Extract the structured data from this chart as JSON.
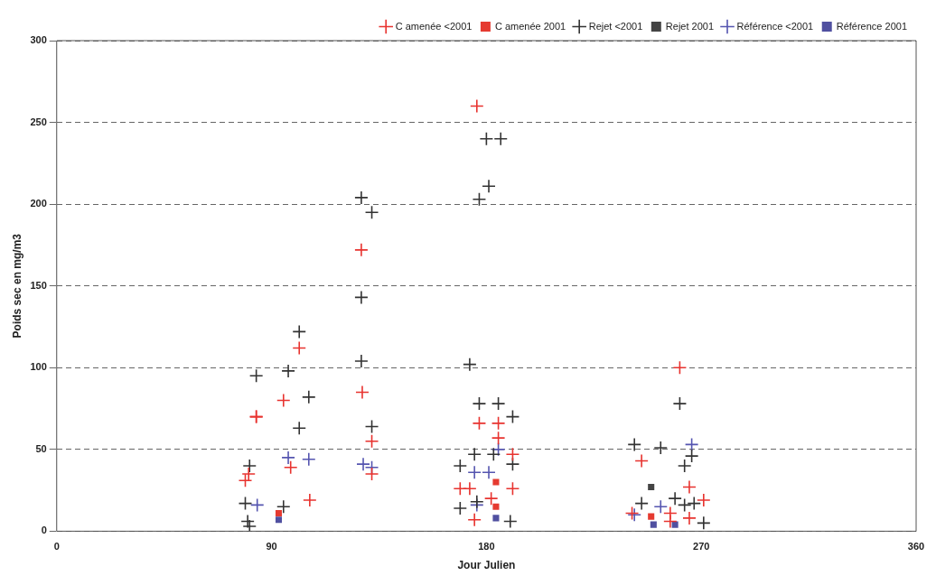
{
  "chart_data": {
    "type": "scatter",
    "xlabel": "Jour Julien",
    "ylabel": "Poids sec en mg/m3",
    "xlim": [
      0,
      360
    ],
    "xticks": [
      0,
      90,
      180,
      270,
      360
    ],
    "ylim": [
      0,
      300
    ],
    "yticks": [
      0,
      50,
      100,
      150,
      200,
      250,
      300
    ],
    "grid": "y",
    "line_style": "dashed",
    "legend": "top right",
    "series": [
      {
        "name": "C amenée <2001",
        "color": "#e8332f",
        "marker": "cross",
        "x": [
          83.6,
          101.6,
          95,
          128,
          83.6,
          132,
          98,
          132,
          80.4,
          79,
          106,
          127.6,
          176,
          177,
          185,
          185,
          191,
          169,
          173,
          191,
          182,
          175,
          261,
          245,
          265,
          271,
          241,
          257,
          265,
          257
        ],
        "values": [
          70,
          112,
          80,
          85,
          70,
          55,
          39,
          35,
          35,
          31,
          19,
          172,
          260,
          66,
          66,
          57,
          47,
          26,
          26,
          26,
          20,
          7,
          100,
          43,
          27,
          19,
          11,
          11,
          8,
          6
        ]
      },
      {
        "name": "C amenée 2001",
        "color": "#e53a30",
        "marker": "square",
        "x": [
          93,
          184,
          184,
          249
        ],
        "values": [
          11,
          30,
          15,
          9
        ]
      },
      {
        "name": "Rejet <2001",
        "color": "#333333",
        "marker": "cross",
        "x": [
          101.6,
          127.6,
          83.6,
          97,
          105.6,
          101.6,
          132,
          80.8,
          79,
          80,
          80.8,
          95,
          127.6,
          132,
          127.6,
          180,
          186,
          181,
          177,
          173,
          177,
          185,
          191,
          175,
          183,
          191,
          169,
          176,
          169,
          190,
          261,
          242,
          253,
          266,
          263,
          259,
          245,
          267,
          263,
          271
        ],
        "values": [
          122,
          104,
          95,
          98,
          82,
          63,
          64,
          40,
          17,
          6,
          3,
          15,
          204,
          195,
          143,
          240,
          240,
          211,
          203,
          102,
          78,
          78,
          70,
          47,
          47,
          41,
          40,
          18,
          14,
          6,
          78,
          53,
          51,
          46,
          40,
          20,
          17,
          17,
          16,
          5
        ]
      },
      {
        "name": "Rejet 2001",
        "color": "#444444",
        "marker": "square",
        "x": [
          249
        ],
        "values": [
          27
        ]
      },
      {
        "name": "Référence <2001",
        "color": "#5555b0",
        "marker": "cross",
        "x": [
          97,
          105.6,
          128.4,
          132,
          84,
          185,
          175,
          181,
          176,
          266,
          253,
          242
        ],
        "values": [
          45,
          44,
          41,
          39,
          16,
          50,
          36,
          36,
          16,
          53,
          15,
          10
        ]
      },
      {
        "name": "Référence 2001",
        "color": "#5050a0",
        "marker": "square",
        "x": [
          93,
          184,
          250,
          259
        ],
        "values": [
          7,
          8,
          4,
          4
        ]
      }
    ]
  }
}
